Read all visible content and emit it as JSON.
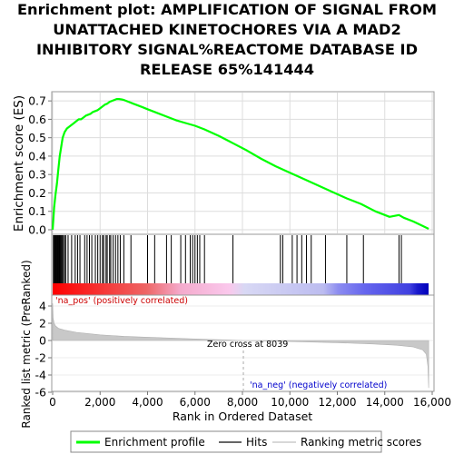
{
  "title_lines": [
    "Enrichment plot: AMPLIFICATION OF SIGNAL FROM",
    "UNATTACHED KINETOCHORES VIA A MAD2",
    "INHIBITORY SIGNAL%REACTOME DATABASE ID",
    "RELEASE 65%141444"
  ],
  "chart_data": [
    {
      "type": "line",
      "panel": "enrichment",
      "ylabel": "Enrichment score (ES)",
      "xlim": [
        0,
        16000
      ],
      "ylim": [
        0,
        0.75
      ],
      "yticks": [
        0.0,
        0.1,
        0.2,
        0.3,
        0.4,
        0.5,
        0.6,
        0.7
      ],
      "ytick_labels": [
        "0.0",
        "0.1",
        "0.2",
        "0.3",
        "0.4",
        "0.5",
        "0.6",
        "0.7"
      ],
      "grid": true,
      "series": [
        {
          "name": "Enrichment profile",
          "color": "#00ff00",
          "x": [
            0,
            60,
            120,
            180,
            240,
            300,
            360,
            420,
            500,
            600,
            700,
            800,
            900,
            1000,
            1100,
            1200,
            1300,
            1400,
            1500,
            1600,
            1700,
            1800,
            1900,
            2000,
            2100,
            2200,
            2300,
            2400,
            2500,
            2600,
            2700,
            2800,
            2900,
            3000,
            3200,
            3400,
            3600,
            3800,
            4000,
            4400,
            4800,
            5200,
            5600,
            6000,
            6400,
            7000,
            7600,
            8200,
            8800,
            9400,
            10000,
            10600,
            11200,
            11800,
            12400,
            13000,
            13600,
            14200,
            14600,
            14800,
            15200,
            15600,
            15850
          ],
          "y": [
            0.0,
            0.12,
            0.19,
            0.25,
            0.33,
            0.4,
            0.45,
            0.5,
            0.53,
            0.55,
            0.56,
            0.57,
            0.58,
            0.59,
            0.6,
            0.6,
            0.61,
            0.62,
            0.625,
            0.63,
            0.64,
            0.645,
            0.65,
            0.66,
            0.67,
            0.68,
            0.685,
            0.695,
            0.7,
            0.705,
            0.71,
            0.71,
            0.708,
            0.705,
            0.695,
            0.685,
            0.675,
            0.665,
            0.655,
            0.635,
            0.615,
            0.595,
            0.58,
            0.565,
            0.545,
            0.51,
            0.47,
            0.43,
            0.385,
            0.345,
            0.31,
            0.275,
            0.24,
            0.205,
            0.17,
            0.14,
            0.1,
            0.07,
            0.08,
            0.065,
            0.045,
            0.02,
            0.005
          ]
        }
      ]
    },
    {
      "type": "scatter",
      "panel": "hits",
      "series": [
        {
          "name": "Hits",
          "color": "#000000",
          "x": [
            30,
            60,
            90,
            120,
            150,
            180,
            210,
            240,
            270,
            300,
            330,
            360,
            400,
            450,
            500,
            550,
            650,
            800,
            950,
            1050,
            1150,
            1350,
            1450,
            1550,
            1650,
            1800,
            1900,
            2000,
            2100,
            2150,
            2250,
            2300,
            2400,
            2450,
            2550,
            2650,
            2750,
            2850,
            3000,
            3300,
            4000,
            4300,
            4800,
            5000,
            5400,
            5600,
            5800,
            5900,
            6000,
            6100,
            6200,
            6400,
            7600,
            9600,
            9700,
            10100,
            10300,
            10500,
            10700,
            10900,
            11500,
            12400,
            13100,
            14600,
            14700
          ]
        }
      ]
    },
    {
      "type": "area",
      "panel": "ranked-metric",
      "ylabel": "Ranked list metric (PreRanked)",
      "xlabel": "Rank in Ordered Dataset",
      "xlim": [
        0,
        16000
      ],
      "ylim": [
        -6,
        4
      ],
      "xticks": [
        0,
        2000,
        4000,
        6000,
        8000,
        10000,
        12000,
        14000,
        16000
      ],
      "xtick_labels": [
        "0",
        "2,000",
        "4,000",
        "6,000",
        "8,000",
        "10,000",
        "12,000",
        "14,000",
        "16,000"
      ],
      "yticks": [
        4,
        2,
        0,
        -2,
        -4,
        -6
      ],
      "ytick_labels": [
        "4",
        "2",
        "0",
        "-2",
        "-4",
        "-6"
      ],
      "series": [
        {
          "name": "Ranking metric scores",
          "color": "#c0c0c0",
          "x": [
            0,
            20,
            60,
            120,
            250,
            500,
            1000,
            2000,
            3000,
            4000,
            6000,
            8039,
            10000,
            12000,
            13500,
            14500,
            15200,
            15600,
            15750,
            15820,
            15850
          ],
          "y": [
            4.3,
            2.6,
            2.0,
            1.7,
            1.4,
            1.2,
            0.95,
            0.65,
            0.48,
            0.38,
            0.18,
            0.0,
            -0.12,
            -0.25,
            -0.4,
            -0.55,
            -0.75,
            -1.1,
            -1.6,
            -3.0,
            -5.5
          ]
        }
      ]
    }
  ],
  "annotations": {
    "pos_label": "'na_pos' (positively correlated)",
    "neg_label": "'na_neg' (negatively correlated)",
    "zero_cross": "Zero cross at 8039",
    "zero_cross_x": 8039
  },
  "colors": {
    "profile": "#00ff00",
    "pos_label": "#cc0000",
    "neg_label": "#0000cc"
  },
  "legend": {
    "items": [
      {
        "label": "Enrichment profile",
        "color": "#00ff00",
        "kind": "line"
      },
      {
        "label": "Hits",
        "color": "#000000",
        "kind": "tick"
      },
      {
        "label": "Ranking metric scores",
        "color": "#c0c0c0",
        "kind": "line"
      }
    ]
  }
}
